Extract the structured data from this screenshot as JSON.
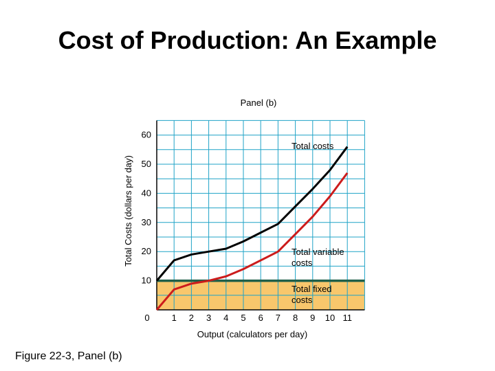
{
  "slide": {
    "title": "Cost of Production: An Example",
    "caption": "Figure 22-3, Panel (b)"
  },
  "colors": {
    "grid": "#1fa3c7",
    "fixed_fill": "#f8c76c",
    "total_costs": "#000000",
    "variable_costs": "#cc1c1c",
    "fixed_costs": "#1f5f4a"
  },
  "chart_data": {
    "type": "line",
    "title": "Panel (b)",
    "xlabel": "Output (calculators per day)",
    "ylabel": "Total Costs (dollars per day)",
    "xlim": [
      0,
      12
    ],
    "ylim": [
      0,
      65
    ],
    "x_ticks": [
      "0",
      "1",
      "2",
      "3",
      "4",
      "5",
      "6",
      "7",
      "8",
      "9",
      "10",
      "11"
    ],
    "y_ticks": [
      "10",
      "20",
      "30",
      "40",
      "50",
      "60"
    ],
    "grid": true,
    "x": [
      0,
      1,
      2,
      3,
      4,
      5,
      6,
      7,
      8,
      9,
      10,
      11
    ],
    "series": [
      {
        "name": "Total costs",
        "values": [
          10,
          17,
          19,
          20,
          21,
          23.5,
          26.5,
          29.5,
          35.5,
          41.5,
          48,
          56
        ]
      },
      {
        "name": "Total variable costs",
        "values": [
          0,
          7,
          9,
          10,
          11.5,
          14,
          17,
          20,
          26,
          32,
          39,
          47
        ]
      },
      {
        "name": "Total fixed costs",
        "values": [
          10,
          10,
          10,
          10,
          10,
          10,
          10,
          10,
          10,
          10,
          10,
          10
        ]
      }
    ],
    "annotations": {
      "total_costs": [
        "Total costs"
      ],
      "variable_costs": [
        "Total variable",
        "costs"
      ],
      "fixed_costs": [
        "Total fixed",
        "costs"
      ]
    }
  }
}
